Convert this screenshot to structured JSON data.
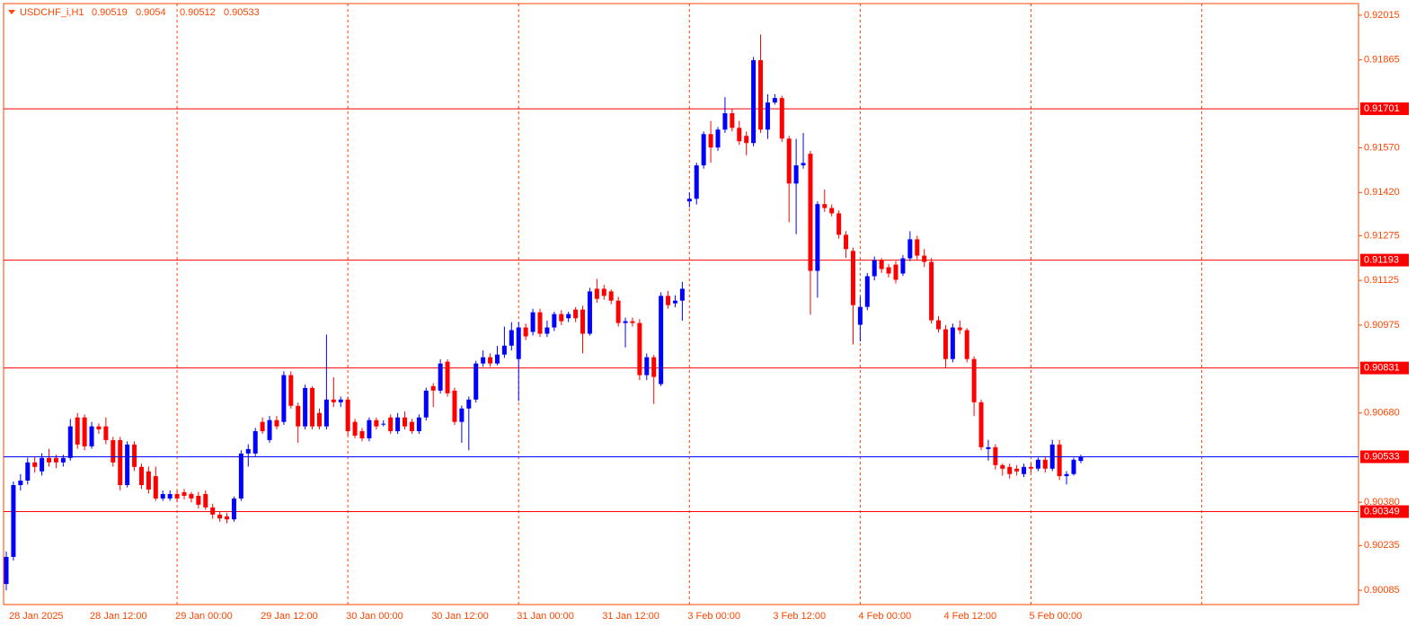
{
  "chart_data": {
    "type": "candlestick",
    "title": "USDCHF_i,H1",
    "categories": [
      "28 Jan 2025",
      null,
      null,
      null,
      null,
      null,
      null,
      null,
      null,
      null,
      null,
      null,
      "28 Jan 12:00",
      null,
      null,
      null,
      null,
      null,
      null,
      null,
      null,
      null,
      null,
      null,
      "29 Jan 00:00",
      null,
      null,
      null,
      null,
      null,
      null,
      null,
      null,
      null,
      null,
      null,
      "29 Jan 12:00",
      null,
      null,
      null,
      null,
      null,
      null,
      null,
      null,
      null,
      null,
      null,
      "30 Jan 00:00",
      null,
      null,
      null,
      null,
      null,
      null,
      null,
      null,
      null,
      null,
      null,
      "30 Jan 12:00",
      null,
      null,
      null,
      null,
      null,
      null,
      null,
      null,
      null,
      null,
      null,
      "31 Jan 00:00",
      null,
      null,
      null,
      null,
      null,
      null,
      null,
      null,
      null,
      null,
      null,
      "31 Jan 12:00",
      null,
      null,
      null,
      null,
      null,
      null,
      null,
      null,
      null,
      null,
      null,
      "3 Feb 00:00",
      null,
      null,
      null,
      null,
      null,
      null,
      null,
      null,
      null,
      null,
      null,
      "3 Feb 12:00",
      null,
      null,
      null,
      null,
      null,
      null,
      null,
      null,
      null,
      null,
      null,
      "4 Feb 00:00",
      null,
      null,
      null,
      null,
      null,
      null,
      null,
      null,
      null,
      null,
      null,
      "4 Feb 12:00",
      null,
      null,
      null,
      null,
      null,
      null,
      null,
      null,
      null,
      null,
      null,
      "5 Feb 00:00",
      null,
      null,
      null,
      null,
      null,
      null,
      null
    ],
    "open": [
      0.90106,
      0.90197,
      0.90438,
      0.90453,
      0.90514,
      0.90484,
      0.90529,
      0.90529,
      0.90514,
      0.90529,
      0.90665,
      0.90665,
      0.90568,
      0.90635,
      0.90635,
      0.90589,
      0.90589,
      0.90438,
      0.90574,
      0.90499,
      0.90484,
      0.90468,
      0.90393,
      0.90393,
      0.90408,
      0.90414,
      0.90408,
      0.90402,
      0.90408,
      0.90363,
      0.90339,
      0.90333,
      0.90323,
      0.90393,
      0.90544,
      0.90544,
      0.9065,
      0.90589,
      0.90656,
      0.9065,
      0.90807,
      0.90704,
      0.90635,
      0.90764,
      0.9068,
      0.90635,
      0.90725,
      0.90716,
      0.90725,
      0.9065,
      0.90619,
      0.90595,
      0.90656,
      0.90644,
      0.90665,
      0.90619,
      0.90665,
      0.9065,
      0.90619,
      0.90665,
      0.9077,
      0.90755,
      0.90852,
      0.90755,
      0.9065,
      0.90695,
      0.90725,
      0.90846,
      0.90867,
      0.90846,
      0.90876,
      0.90906,
      0.90861,
      0.90967,
      0.90952,
      0.91018,
      0.90946,
      0.90967,
      0.91012,
      0.90998,
      0.91027,
      0.91027,
      0.90946,
      0.91097,
      0.91097,
      0.91088,
      0.91057,
      0.90982,
      0.90988,
      0.90982,
      0.90807,
      0.90867,
      0.90777,
      0.91073,
      0.91048,
      0.91057,
      0.9139,
      0.91399,
      0.91511,
      0.91616,
      0.91571,
      0.91631,
      0.91686,
      0.91637,
      0.9161,
      0.91586,
      0.91864,
      0.91631,
      0.91722,
      0.91737,
      0.91601,
      0.9145,
      0.91511,
      0.9155,
      0.91157,
      0.91381,
      0.91368,
      0.9135,
      0.91278,
      0.91224,
      0.90976,
      0.91036,
      0.91139,
      0.91193,
      0.91169,
      0.91178,
      0.91148,
      0.91199,
      0.91263,
      0.91208,
      0.91187,
      0.90991,
      0.90961,
      0.90861,
      0.90967,
      0.90958,
      0.90861,
      0.90716,
      0.90559,
      0.90565,
      0.90505,
      0.90499,
      0.90493,
      0.90475,
      0.90499,
      0.90493,
      0.90523,
      0.90493,
      0.90574,
      0.90468,
      0.90475,
      0.90519
    ],
    "high": [
      0.90215,
      0.9045,
      0.90475,
      0.9053,
      0.90535,
      0.90545,
      0.9056,
      0.9054,
      0.9054,
      0.9066,
      0.9068,
      0.90675,
      0.9065,
      0.90645,
      0.90665,
      0.906,
      0.906,
      0.90585,
      0.90585,
      0.9051,
      0.905,
      0.905,
      0.9042,
      0.9042,
      0.9042,
      0.90425,
      0.90415,
      0.90415,
      0.9042,
      0.90375,
      0.9035,
      0.90345,
      0.904,
      0.90555,
      0.90575,
      0.9063,
      0.90665,
      0.9067,
      0.9067,
      0.9082,
      0.9082,
      0.90715,
      0.90775,
      0.9077,
      0.90695,
      0.90943,
      0.908,
      0.90735,
      0.90735,
      0.9066,
      0.9063,
      0.90665,
      0.90665,
      0.90655,
      0.90675,
      0.9068,
      0.90685,
      0.9066,
      0.90675,
      0.90765,
      0.9078,
      0.9086,
      0.9086,
      0.90765,
      0.90705,
      0.90735,
      0.90855,
      0.9089,
      0.9088,
      0.90905,
      0.9097,
      0.90985,
      0.90985,
      0.9098,
      0.9103,
      0.9103,
      0.9099,
      0.9102,
      0.91025,
      0.9102,
      0.91035,
      0.9104,
      0.911,
      0.9113,
      0.9111,
      0.91095,
      0.9107,
      0.91,
      0.91,
      0.90995,
      0.9088,
      0.90875,
      0.91085,
      0.9109,
      0.91075,
      0.9112,
      0.9142,
      0.9152,
      0.91625,
      0.9166,
      0.9164,
      0.9174,
      0.917,
      0.9166,
      0.91625,
      0.91875,
      0.9195,
      0.9175,
      0.9175,
      0.91745,
      0.9161,
      0.916,
      0.9162,
      0.9156,
      0.9139,
      0.9143,
      0.9138,
      0.9136,
      0.9129,
      0.91235,
      0.9107,
      0.9115,
      0.91205,
      0.912,
      0.9118,
      0.9119,
      0.9121,
      0.9129,
      0.91275,
      0.9123,
      0.912,
      0.91005,
      0.90975,
      0.9098,
      0.9099,
      0.90965,
      0.9087,
      0.90725,
      0.9059,
      0.90575,
      0.9051,
      0.9051,
      0.90505,
      0.9051,
      0.9051,
      0.9053,
      0.90535,
      0.9059,
      0.9059,
      0.90485,
      0.9053,
      0.9054
    ],
    "low": [
      0.90085,
      0.90185,
      0.9042,
      0.9044,
      0.9048,
      0.9047,
      0.905,
      0.90495,
      0.905,
      0.9052,
      0.9056,
      0.90555,
      0.9056,
      0.9061,
      0.90575,
      0.905,
      0.9042,
      0.9043,
      0.90485,
      0.90425,
      0.9041,
      0.90385,
      0.90385,
      0.90385,
      0.9038,
      0.9039,
      0.9038,
      0.9036,
      0.90355,
      0.90325,
      0.90315,
      0.9031,
      0.90315,
      0.90385,
      0.905,
      0.90535,
      0.9061,
      0.9058,
      0.90625,
      0.9064,
      0.90695,
      0.9058,
      0.90625,
      0.90625,
      0.90625,
      0.90625,
      0.907,
      0.907,
      0.90605,
      0.90595,
      0.90585,
      0.90585,
      0.90625,
      0.90635,
      0.9061,
      0.9061,
      0.90625,
      0.9061,
      0.9061,
      0.90655,
      0.907,
      0.90745,
      0.90735,
      0.9064,
      0.9058,
      0.90555,
      0.90715,
      0.90835,
      0.90835,
      0.9084,
      0.90865,
      0.9089,
      0.9072,
      0.90925,
      0.9094,
      0.90935,
      0.90935,
      0.90955,
      0.90975,
      0.90985,
      0.90985,
      0.9088,
      0.9094,
      0.9105,
      0.9106,
      0.91045,
      0.9097,
      0.909,
      0.9097,
      0.9079,
      0.9079,
      0.9071,
      0.9077,
      0.9103,
      0.91035,
      0.9099,
      0.9137,
      0.9138,
      0.915,
      0.9152,
      0.9156,
      0.9162,
      0.91625,
      0.9158,
      0.91545,
      0.91575,
      0.9162,
      0.916,
      0.91715,
      0.9159,
      0.9132,
      0.9128,
      0.915,
      0.9101,
      0.91067,
      0.91355,
      0.9134,
      0.91265,
      0.912,
      0.9091,
      0.9092,
      0.91025,
      0.91125,
      0.9115,
      0.91135,
      0.91115,
      0.9114,
      0.9119,
      0.91195,
      0.9117,
      0.9098,
      0.9095,
      0.9083,
      0.9085,
      0.90945,
      0.9085,
      0.9067,
      0.90555,
      0.9052,
      0.9049,
      0.9047,
      0.9046,
      0.9047,
      0.90465,
      0.9048,
      0.90485,
      0.9048,
      0.90485,
      0.90455,
      0.9044,
      0.9047,
      0.90512
    ],
    "close": [
      0.90197,
      0.90438,
      0.90453,
      0.90514,
      0.90499,
      0.90529,
      0.90514,
      0.90514,
      0.90529,
      0.90635,
      0.90574,
      0.90568,
      0.90635,
      0.90625,
      0.90589,
      0.90514,
      0.90438,
      0.90574,
      0.90499,
      0.90438,
      0.90423,
      0.90393,
      0.90408,
      0.90408,
      0.90393,
      0.90402,
      0.90393,
      0.90372,
      0.90363,
      0.90339,
      0.90326,
      0.90323,
      0.90393,
      0.90544,
      0.90559,
      0.90619,
      0.90619,
      0.90656,
      0.90635,
      0.90807,
      0.90704,
      0.90635,
      0.90764,
      0.90635,
      0.90635,
      0.90725,
      0.90716,
      0.90725,
      0.90619,
      0.90604,
      0.90595,
      0.90656,
      0.90635,
      0.90644,
      0.90619,
      0.90665,
      0.90635,
      0.90619,
      0.90665,
      0.90755,
      0.90755,
      0.90846,
      0.90746,
      0.9065,
      0.90695,
      0.90725,
      0.90846,
      0.90867,
      0.90846,
      0.90876,
      0.90906,
      0.90958,
      0.90967,
      0.90937,
      0.91018,
      0.90946,
      0.90967,
      0.91012,
      0.90988,
      0.91012,
      0.90998,
      0.90946,
      0.91088,
      0.91063,
      0.91073,
      0.91057,
      0.90982,
      0.90988,
      0.90982,
      0.90807,
      0.90867,
      0.90801,
      0.91073,
      0.91042,
      0.91057,
      0.91097,
      0.91399,
      0.91511,
      0.91616,
      0.91571,
      0.91631,
      0.91686,
      0.91637,
      0.91592,
      0.91586,
      0.91864,
      0.91631,
      0.91722,
      0.91737,
      0.91601,
      0.9145,
      0.91511,
      0.91519,
      0.91157,
      0.91381,
      0.91368,
      0.9135,
      0.91278,
      0.9123,
      0.91042,
      0.91036,
      0.91139,
      0.91193,
      0.91163,
      0.91148,
      0.91127,
      0.91199,
      0.91263,
      0.91208,
      0.91187,
      0.90991,
      0.90961,
      0.90861,
      0.90967,
      0.90958,
      0.90861,
      0.90716,
      0.90565,
      0.90565,
      0.90505,
      0.90493,
      0.90475,
      0.90484,
      0.90499,
      0.90493,
      0.90523,
      0.90493,
      0.90574,
      0.90468,
      0.90475,
      0.90523,
      0.90533
    ],
    "up_color": "#0000ff",
    "down_color": "#ff0000",
    "grid_color": "#ff4500",
    "axis_color": "#ff4500",
    "ylim": [
      0.90037,
      0.92054
    ],
    "yticks": [
      0.92015,
      0.91865,
      {
        "value": 0.9157,
        "label": "0.91570"
      },
      {
        "value": 0.9142,
        "label": "0.91420"
      },
      0.91275,
      0.91125,
      0.90975,
      {
        "value": 0.9068,
        "label": "0.90680"
      },
      {
        "value": 0.9038,
        "label": "0.90380"
      },
      0.90235,
      0.90085
    ],
    "grid": true,
    "levels": [
      0.91701,
      0.91193,
      0.90831,
      0.90349
    ],
    "level_color": "#ff0000",
    "last_price_color": "#0000ff"
  }
}
